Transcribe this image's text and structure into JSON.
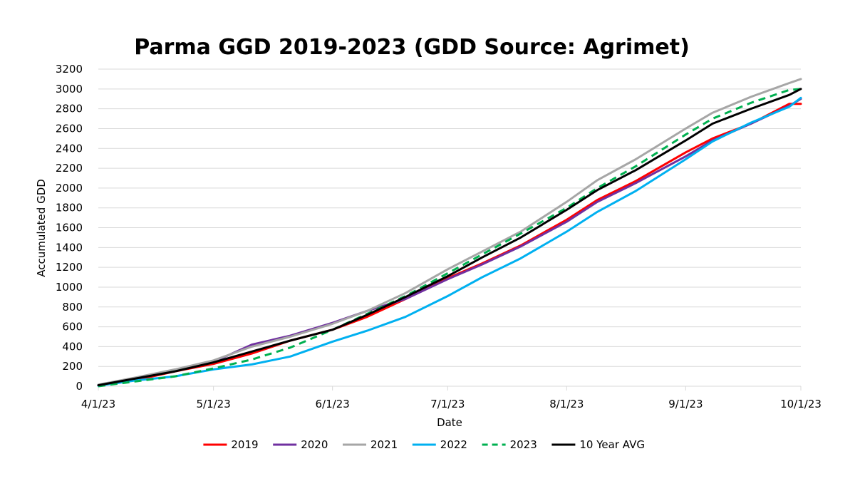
{
  "chart_data": {
    "type": "line",
    "title": "Parma GGD 2019-2023 (GDD Source: Agrimet)",
    "xlabel": "Date",
    "ylabel": "Accumulated GDD",
    "ylim": [
      0,
      3200
    ],
    "ytick_step": 200,
    "x_ticks": [
      {
        "day": 0,
        "label": "4/1/23"
      },
      {
        "day": 30,
        "label": "5/1/23"
      },
      {
        "day": 61,
        "label": "6/1/23"
      },
      {
        "day": 91,
        "label": "7/1/23"
      },
      {
        "day": 122,
        "label": "8/1/23"
      },
      {
        "day": 153,
        "label": "9/1/23"
      },
      {
        "day": 183,
        "label": "10/1/23"
      }
    ],
    "x_range_days": [
      0,
      183
    ],
    "series": [
      {
        "name": "2019",
        "color": "#ff0000",
        "dashed": false,
        "days": [
          0,
          10,
          20,
          30,
          40,
          50,
          61,
          70,
          80,
          91,
          100,
          110,
          122,
          130,
          140,
          153,
          160,
          170,
          180,
          183
        ],
        "values": [
          10,
          65,
          150,
          225,
          330,
          460,
          570,
          700,
          880,
          1090,
          1240,
          1420,
          1680,
          1880,
          2070,
          2360,
          2500,
          2650,
          2850,
          2850
        ]
      },
      {
        "name": "2020",
        "color": "#7030a0",
        "dashed": false,
        "days": [
          0,
          10,
          20,
          30,
          40,
          50,
          61,
          70,
          80,
          91,
          100,
          110,
          122,
          130,
          140,
          153,
          160,
          170,
          180,
          183
        ],
        "values": [
          10,
          80,
          160,
          245,
          420,
          510,
          640,
          760,
          880,
          1080,
          1230,
          1410,
          1660,
          1860,
          2050,
          2320,
          2480,
          2650,
          2830,
          2900
        ]
      },
      {
        "name": "2021",
        "color": "#a6a6a6",
        "dashed": false,
        "days": [
          0,
          10,
          20,
          30,
          40,
          50,
          61,
          70,
          80,
          91,
          100,
          110,
          122,
          130,
          140,
          153,
          160,
          170,
          180,
          183
        ],
        "values": [
          15,
          90,
          170,
          260,
          400,
          500,
          630,
          760,
          940,
          1180,
          1360,
          1560,
          1860,
          2080,
          2290,
          2600,
          2760,
          2920,
          3060,
          3100
        ]
      },
      {
        "name": "2022",
        "color": "#00b0f0",
        "dashed": false,
        "days": [
          0,
          10,
          20,
          30,
          40,
          50,
          61,
          70,
          80,
          91,
          100,
          110,
          122,
          130,
          140,
          153,
          160,
          170,
          180,
          183
        ],
        "values": [
          5,
          60,
          100,
          170,
          220,
          300,
          450,
          560,
          700,
          910,
          1100,
          1290,
          1560,
          1760,
          1970,
          2290,
          2470,
          2660,
          2820,
          2910
        ]
      },
      {
        "name": "2023",
        "color": "#00b050",
        "dashed": true,
        "days": [
          0,
          10,
          20,
          30,
          40,
          50,
          61,
          70,
          80,
          91,
          100,
          110,
          122,
          130,
          140,
          153,
          160,
          170,
          180,
          183
        ],
        "values": [
          0,
          50,
          100,
          180,
          270,
          390,
          570,
          730,
          910,
          1140,
          1330,
          1540,
          1800,
          2000,
          2220,
          2540,
          2700,
          2860,
          2990,
          3000
        ]
      },
      {
        "name": "10 Year AVG",
        "color": "#000000",
        "dashed": false,
        "days": [
          0,
          10,
          20,
          30,
          40,
          50,
          61,
          70,
          80,
          91,
          100,
          110,
          122,
          130,
          140,
          153,
          160,
          170,
          180,
          183
        ],
        "values": [
          10,
          80,
          150,
          240,
          350,
          460,
          570,
          720,
          900,
          1110,
          1300,
          1500,
          1780,
          1980,
          2180,
          2480,
          2650,
          2800,
          2940,
          3000
        ]
      }
    ],
    "legend_position": "bottom-center"
  }
}
